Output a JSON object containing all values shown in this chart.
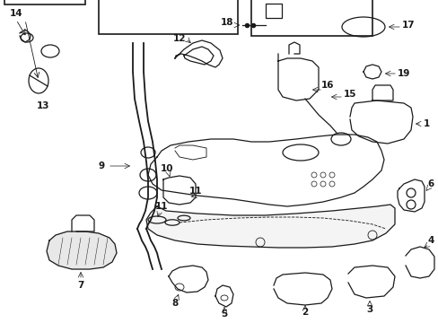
{
  "bg_color": "#ffffff",
  "fig_width": 4.89,
  "fig_height": 3.6,
  "dpi": 100,
  "image_b64": ""
}
